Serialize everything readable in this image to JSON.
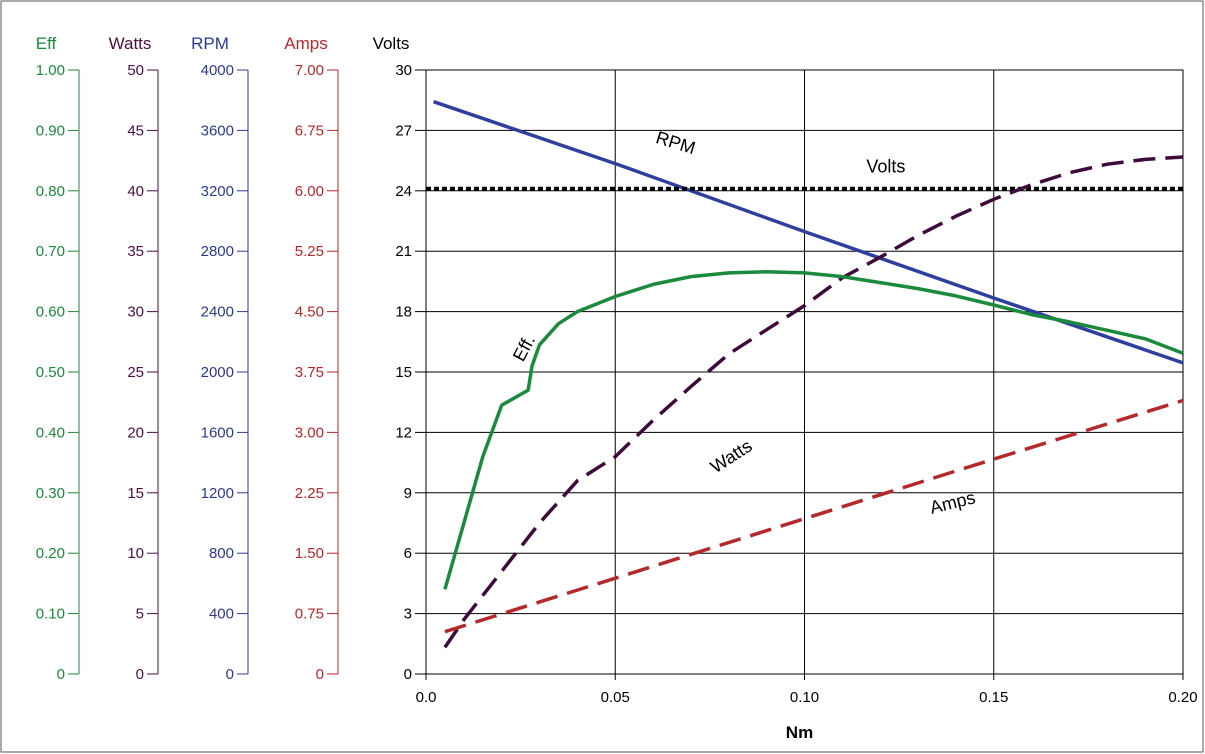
{
  "chart_data": {
    "type": "line",
    "x_axis": {
      "label": "Nm",
      "range": [
        0,
        0.2
      ],
      "ticks": [
        0.0,
        0.05,
        0.1,
        0.15,
        0.2
      ],
      "tick_labels": [
        "0.0",
        "0.05",
        "0.10",
        "0.15",
        "0.20"
      ]
    },
    "grid": true,
    "y_axes": [
      {
        "id": "eff",
        "title": "Eff",
        "color": "#1b8a3c",
        "range": [
          0,
          1.0
        ],
        "tick_labels": [
          "0",
          "0.10",
          "0.20",
          "0.30",
          "0.40",
          "0.50",
          "0.60",
          "0.70",
          "0.80",
          "0.90",
          "1.00"
        ]
      },
      {
        "id": "watts",
        "title": "Watts",
        "color": "#4a1040",
        "range": [
          0,
          50
        ],
        "tick_labels": [
          "0",
          "5",
          "10",
          "15",
          "20",
          "25",
          "30",
          "35",
          "40",
          "45",
          "50"
        ]
      },
      {
        "id": "rpm",
        "title": "RPM",
        "color": "#2a3a8f",
        "range": [
          0,
          4000
        ],
        "tick_labels": [
          "0",
          "400",
          "800",
          "1200",
          "1600",
          "2000",
          "2400",
          "2800",
          "3200",
          "3600",
          "4000"
        ]
      },
      {
        "id": "amps",
        "title": "Amps",
        "color": "#b5282b",
        "range": [
          0,
          7.0
        ],
        "tick_labels": [
          "0",
          "0.75",
          "1.50",
          "2.25",
          "3.00",
          "3.75",
          "4.50",
          "5.25",
          "6.00",
          "6.75",
          "7.00"
        ]
      },
      {
        "id": "volts",
        "title": "Volts",
        "color": "#000000",
        "range": [
          0,
          30
        ],
        "tick_labels": [
          "0",
          "3",
          "6",
          "9",
          "12",
          "15",
          "18",
          "21",
          "24",
          "27",
          "30"
        ]
      }
    ],
    "series": [
      {
        "name": "RPM",
        "label": "RPM",
        "axis": "rpm",
        "color": "#2e3f9e",
        "style": "solid",
        "x": [
          0.002,
          0.05,
          0.1,
          0.15,
          0.2
        ],
        "y": [
          3790,
          3380,
          2930,
          2490,
          2060
        ]
      },
      {
        "name": "Volts",
        "label": "Volts",
        "axis": "volts",
        "color": "#000000",
        "style": "dotted",
        "x": [
          0.0,
          0.2
        ],
        "y": [
          24.1,
          24.1
        ]
      },
      {
        "name": "Watts",
        "label": "Watts",
        "axis": "watts",
        "color": "#3d0a3a",
        "style": "dashed",
        "x": [
          0.005,
          0.01,
          0.02,
          0.03,
          0.04,
          0.05,
          0.06,
          0.07,
          0.08,
          0.09,
          0.1,
          0.11,
          0.12,
          0.13,
          0.14,
          0.15,
          0.16,
          0.17,
          0.18,
          0.19,
          0.2
        ],
        "y": [
          2.2,
          4.5,
          8.5,
          12.5,
          16.0,
          18.0,
          21.0,
          23.8,
          26.5,
          28.5,
          30.5,
          32.8,
          34.5,
          36.3,
          37.9,
          39.3,
          40.5,
          41.5,
          42.2,
          42.6,
          42.8
        ]
      },
      {
        "name": "Eff.",
        "label": "Eff.",
        "axis": "eff",
        "color": "#1b8a3c",
        "style": "solid",
        "x": [
          0.005,
          0.01,
          0.015,
          0.02,
          0.027,
          0.028,
          0.03,
          0.035,
          0.04,
          0.05,
          0.06,
          0.07,
          0.08,
          0.09,
          0.1,
          0.11,
          0.12,
          0.13,
          0.14,
          0.15,
          0.16,
          0.17,
          0.18,
          0.19,
          0.2
        ],
        "y": [
          0.14,
          0.25,
          0.36,
          0.445,
          0.47,
          0.51,
          0.545,
          0.58,
          0.6,
          0.625,
          0.645,
          0.658,
          0.664,
          0.666,
          0.664,
          0.658,
          0.648,
          0.638,
          0.626,
          0.611,
          0.595,
          0.583,
          0.569,
          0.555,
          0.531
        ]
      },
      {
        "name": "Amps",
        "label": "Amps",
        "axis": "amps",
        "color": "#b5282b",
        "style": "dashed",
        "x": [
          0.005,
          0.05,
          0.1,
          0.15,
          0.2
        ],
        "y": [
          0.49,
          1.11,
          1.8,
          2.49,
          3.17
        ]
      }
    ]
  }
}
